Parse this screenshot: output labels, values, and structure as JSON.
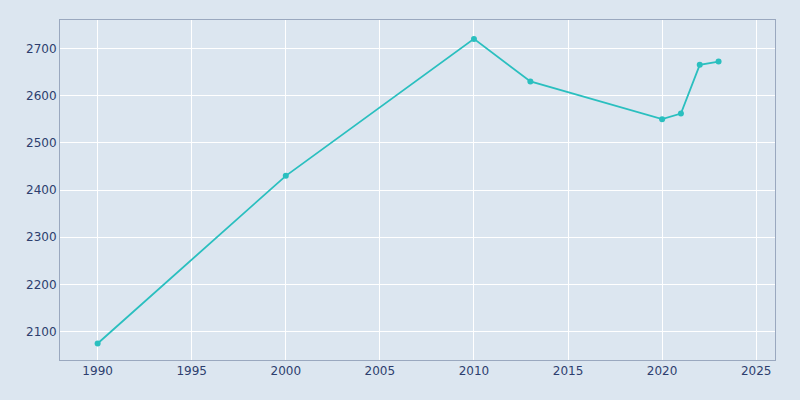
{
  "chart_data": {
    "type": "line",
    "x": [
      1990,
      2000,
      2010,
      2013,
      2020,
      2021,
      2022,
      2023
    ],
    "values": [
      2075,
      2430,
      2720,
      2630,
      2550,
      2562,
      2665,
      2672
    ],
    "color": "#2abfbf",
    "marker": "circle",
    "xlim": [
      1988,
      2026
    ],
    "ylim": [
      2040,
      2760
    ],
    "xticks": [
      1990,
      1995,
      2000,
      2005,
      2010,
      2015,
      2020,
      2025
    ],
    "yticks": [
      2100,
      2200,
      2300,
      2400,
      2500,
      2600,
      2700
    ],
    "grid": true
  }
}
